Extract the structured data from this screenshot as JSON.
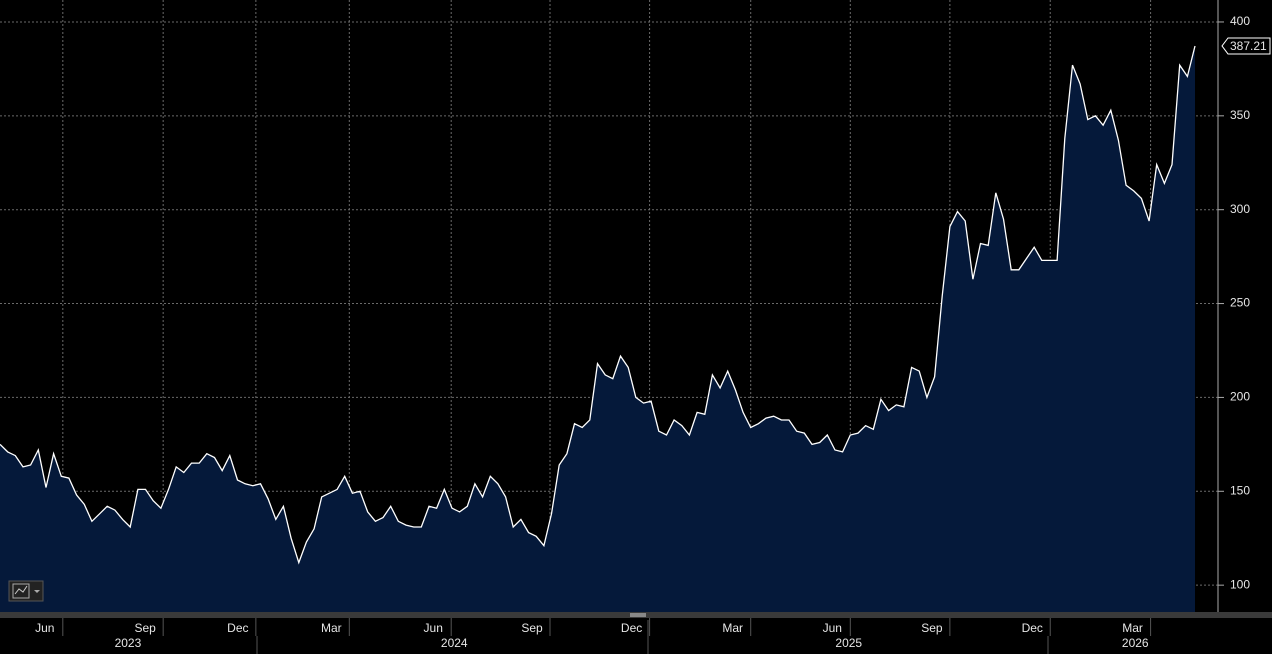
{
  "chart_data": {
    "type": "area",
    "x": [
      0,
      1,
      2,
      3,
      4,
      5,
      6,
      7,
      8,
      9,
      10,
      11,
      12,
      13,
      14,
      15,
      16,
      17,
      18,
      19,
      20,
      21,
      22,
      23,
      24,
      25,
      26,
      27,
      28,
      29,
      30,
      31,
      32,
      33,
      34,
      35,
      36,
      37,
      38,
      39,
      40,
      41,
      42,
      43,
      44,
      45,
      46,
      47,
      48,
      49,
      50,
      51,
      52,
      53,
      54,
      55,
      56,
      57,
      58,
      59,
      60,
      61,
      62,
      63,
      64,
      65,
      66,
      67,
      68,
      69,
      70,
      71,
      72,
      73,
      74,
      75,
      76,
      77,
      78,
      79,
      80,
      81,
      82,
      83,
      84,
      85,
      86,
      87,
      88,
      89,
      90,
      91,
      92,
      93,
      94,
      95,
      96,
      97,
      98,
      99,
      100,
      101,
      102,
      103,
      104,
      105,
      106,
      107,
      108,
      109,
      110,
      111,
      112,
      113,
      114,
      115,
      116,
      117,
      118,
      119,
      120,
      121,
      122,
      123,
      124,
      125,
      126,
      127,
      128,
      129,
      130,
      131,
      132,
      133,
      134,
      135,
      136,
      137,
      138,
      139,
      140,
      141,
      142,
      143,
      144,
      145,
      146,
      147,
      148,
      149,
      150,
      151,
      152,
      153,
      154,
      155,
      156
    ],
    "values": [
      175,
      171,
      169,
      163,
      164,
      172,
      152,
      170,
      158,
      157,
      148,
      143,
      134,
      138,
      142,
      140,
      135,
      131,
      151,
      151,
      145,
      141,
      151,
      163,
      160,
      165,
      165,
      170,
      168,
      161,
      169,
      156,
      154,
      153,
      154,
      146,
      135,
      142,
      125,
      112,
      123,
      130,
      147,
      149,
      151,
      158,
      149,
      150,
      139,
      134,
      136,
      142,
      134,
      132,
      131,
      131,
      142,
      141,
      151,
      141,
      139,
      142,
      154,
      147,
      158,
      154,
      147,
      131,
      135,
      128,
      126,
      121,
      138,
      164,
      170,
      186,
      184,
      188,
      218,
      212,
      210,
      222,
      216,
      200,
      197,
      198,
      182,
      180,
      188,
      185,
      180,
      192,
      191,
      212,
      205,
      214,
      204,
      192,
      184,
      186,
      189,
      190,
      188,
      188,
      182,
      181,
      175,
      176,
      180,
      172,
      171,
      180,
      181,
      185,
      183,
      199,
      193,
      196,
      195,
      216,
      214,
      200,
      211,
      254,
      291,
      299,
      294,
      263,
      282,
      281,
      309,
      295,
      268,
      268,
      274,
      280,
      273,
      273,
      273,
      338,
      377,
      367,
      348,
      350,
      345,
      353,
      337,
      313,
      310,
      306,
      294,
      324,
      314,
      324,
      377,
      371,
      387.21
    ],
    "color": "#ffffff",
    "fill": "#05193a",
    "xlim": [
      0,
      159
    ],
    "ylim": [
      85.7,
      411.7
    ],
    "xticks": [
      {
        "value": 8.2,
        "label": "Jun"
      },
      {
        "value": 21.3,
        "label": "Sep"
      },
      {
        "value": 33.4,
        "label": "Dec"
      },
      {
        "value": 45.6,
        "label": "Mar"
      },
      {
        "value": 58.9,
        "label": "Jun"
      },
      {
        "value": 71.8,
        "label": "Sep"
      },
      {
        "value": 84.8,
        "label": "Dec"
      },
      {
        "value": 98.0,
        "label": "Mar"
      },
      {
        "value": 111.0,
        "label": "Jun"
      },
      {
        "value": 124.0,
        "label": "Sep"
      },
      {
        "value": 137.1,
        "label": "Dec"
      },
      {
        "value": 150.2,
        "label": "Mar"
      }
    ],
    "year_ticks": [
      {
        "value": 16.7,
        "label": "2023"
      },
      {
        "value": 59.3,
        "label": "2024"
      },
      {
        "value": 110.8,
        "label": "2025"
      },
      {
        "value": 148.2,
        "label": "2026"
      }
    ],
    "yticks": [
      100,
      150,
      200,
      250,
      300,
      350,
      400
    ],
    "grid": true
  }
}
